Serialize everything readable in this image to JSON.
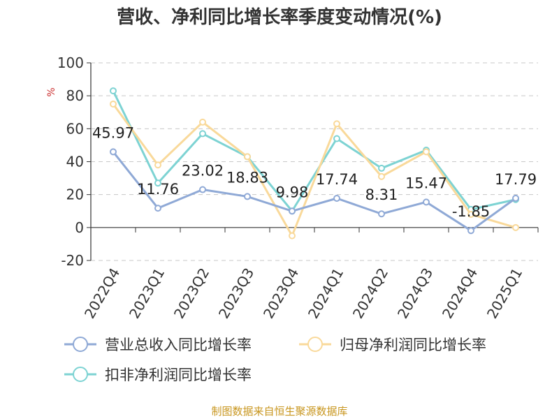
{
  "title": "营收、净利同比增长率季度变动情况(%)",
  "source": "制图数据来自恒生聚源数据库",
  "chart_data": {
    "type": "line",
    "title": "营收、净利同比增长率季度变动情况(%)",
    "ylabel": "%",
    "xlabel": "",
    "ylim": [
      -20,
      100
    ],
    "yticks": [
      -20,
      0,
      20,
      40,
      60,
      80,
      100
    ],
    "grid": true,
    "legend_position": "bottom",
    "categories": [
      "2022Q4",
      "2023Q1",
      "2023Q2",
      "2023Q3",
      "2023Q4",
      "2024Q1",
      "2024Q2",
      "2024Q3",
      "2024Q4",
      "2025Q1"
    ],
    "series": [
      {
        "name": "营业总收入同比增长率",
        "color": "#8fa9d6",
        "values": [
          45.97,
          11.76,
          23.02,
          18.83,
          9.98,
          17.74,
          8.31,
          15.47,
          -1.85,
          17.79
        ],
        "labels": [
          "45.97",
          "11.76",
          "23.02",
          "18.83",
          "9.98",
          "17.74",
          "8.31",
          "15.47",
          "-1.85",
          "17.79"
        ]
      },
      {
        "name": "归母净利润同比增长率",
        "color": "#f9d99a",
        "values": [
          75,
          38,
          64,
          43,
          -5,
          63,
          31,
          46,
          8,
          0
        ]
      },
      {
        "name": "扣非净利润同比增长率",
        "color": "#7dd3d3",
        "values": [
          83,
          27,
          57,
          43,
          10,
          54,
          36,
          47,
          11,
          17
        ]
      }
    ]
  }
}
